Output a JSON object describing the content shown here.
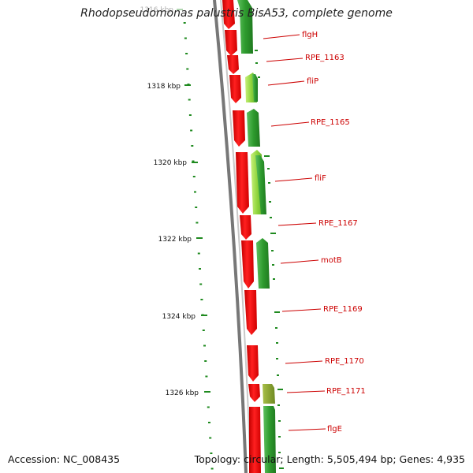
{
  "title": "Rhodopseudomonas palustris BisA53, complete genome",
  "footer": {
    "accession": "Accession: NC_008435",
    "topology": "Topology: circular; Length: 5,505,494 bp; Genes: 4,935"
  },
  "ticks": [
    {
      "label": "1316 kbp",
      "faded": true
    },
    {
      "label": "1318 kbp"
    },
    {
      "label": "1320 kbp"
    },
    {
      "label": "1322 kbp"
    },
    {
      "label": "1324 kbp"
    },
    {
      "label": "1326 kbp"
    }
  ],
  "gene_labels": [
    "flgH",
    "RPE_1163",
    "fliP",
    "RPE_1165",
    "fliF",
    "RPE_1167",
    "motB",
    "RPE_1169",
    "RPE_1170",
    "RPE_1171",
    "flgE"
  ],
  "colors": {
    "red": "#ff1a1a",
    "red_dark": "#c40000",
    "green": "#2e9b2e",
    "green_light": "#9be04a",
    "olive": "#7f9b2a",
    "label": "#cc0000",
    "backbone": "#777777",
    "tick": "#1f8a1f"
  }
}
